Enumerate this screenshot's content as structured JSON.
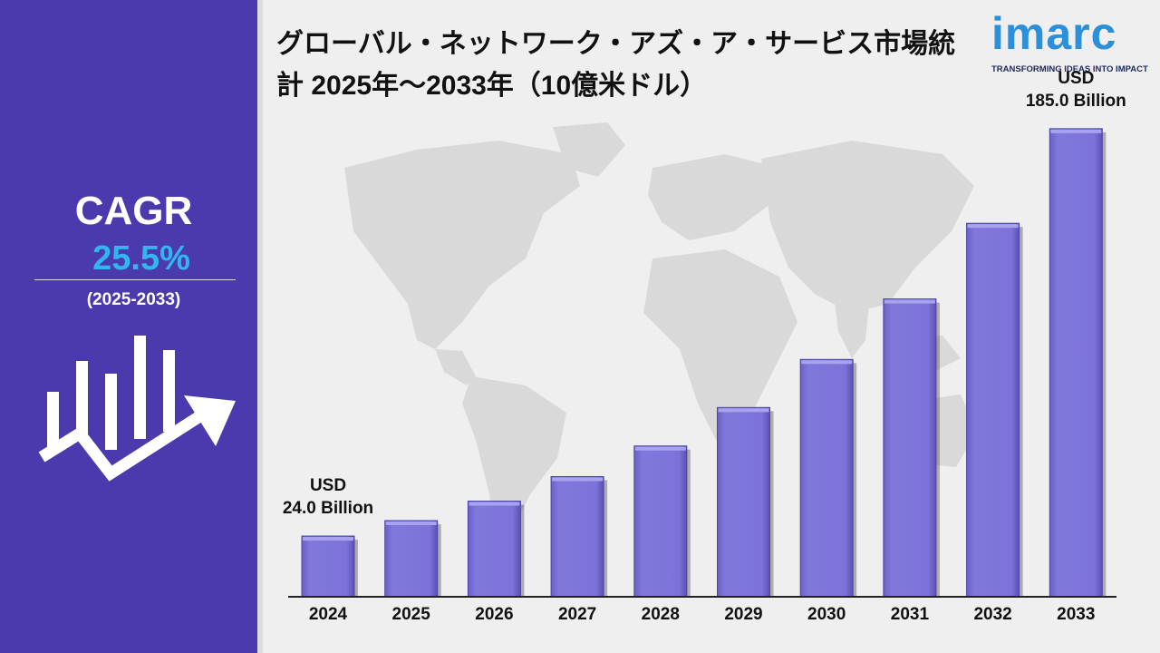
{
  "cagr": {
    "label": "CAGR",
    "value": "25.5%",
    "period": "(2025-2033)"
  },
  "title": "グローバル・ネットワーク・アズ・ア・サービス市場統計 2025年～2033年（10億米ドル）",
  "logo": {
    "name": "imarc",
    "tagline": "TRANSFORMING IDEAS INTO IMPACT"
  },
  "colors": {
    "sidebar": "#4a3aad",
    "accent": "#33b5f0",
    "bar": "#7b72d8",
    "map": "#d9d9d9"
  },
  "icons": [
    "growth-chart-icon",
    "world-map"
  ],
  "chart_data": {
    "type": "bar",
    "categories": [
      "2024",
      "2025",
      "2026",
      "2027",
      "2028",
      "2029",
      "2030",
      "2031",
      "2032",
      "2033"
    ],
    "values": [
      24.0,
      30.1,
      37.8,
      47.5,
      59.6,
      74.8,
      93.8,
      117.7,
      147.6,
      185.0
    ],
    "annotations": [
      {
        "category": "2024",
        "line1": "USD",
        "line2": "24.0 Billion"
      },
      {
        "category": "2033",
        "line1": "USD",
        "line2": "185.0 Billion"
      }
    ],
    "ylim": [
      0,
      200
    ],
    "grid": false
  }
}
